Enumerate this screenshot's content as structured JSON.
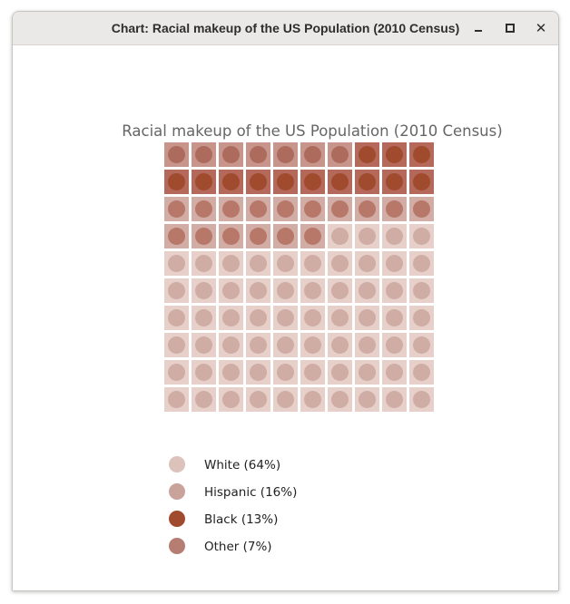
{
  "window": {
    "title": "Chart: Racial makeup of the US Population (2010 Census)"
  },
  "chart_data": {
    "type": "waffle",
    "title": "Racial makeup of the US Population (2010 Census)",
    "grid": {
      "rows": 10,
      "cols": 10
    },
    "unit": "%",
    "legend_position": "bottom-left",
    "series": [
      {
        "name": "White (64%)",
        "value": 64,
        "cell_color": "#e7d0ca",
        "dot_color": "#cfaca4"
      },
      {
        "name": "Hispanic (16%)",
        "value": 16,
        "cell_color": "#d1ada5",
        "dot_color": "#b7786a"
      },
      {
        "name": "Black (13%)",
        "value": 13,
        "cell_color": "#b5695a",
        "dot_color": "#a04a2e"
      },
      {
        "name": "Other (7%)",
        "value": 7,
        "cell_color": "#c7958b",
        "dot_color": "#ad6b5e"
      }
    ],
    "legend_dot_colors": [
      "#dcc2bb",
      "#c9a39b",
      "#a04a2e",
      "#b67e72"
    ]
  }
}
